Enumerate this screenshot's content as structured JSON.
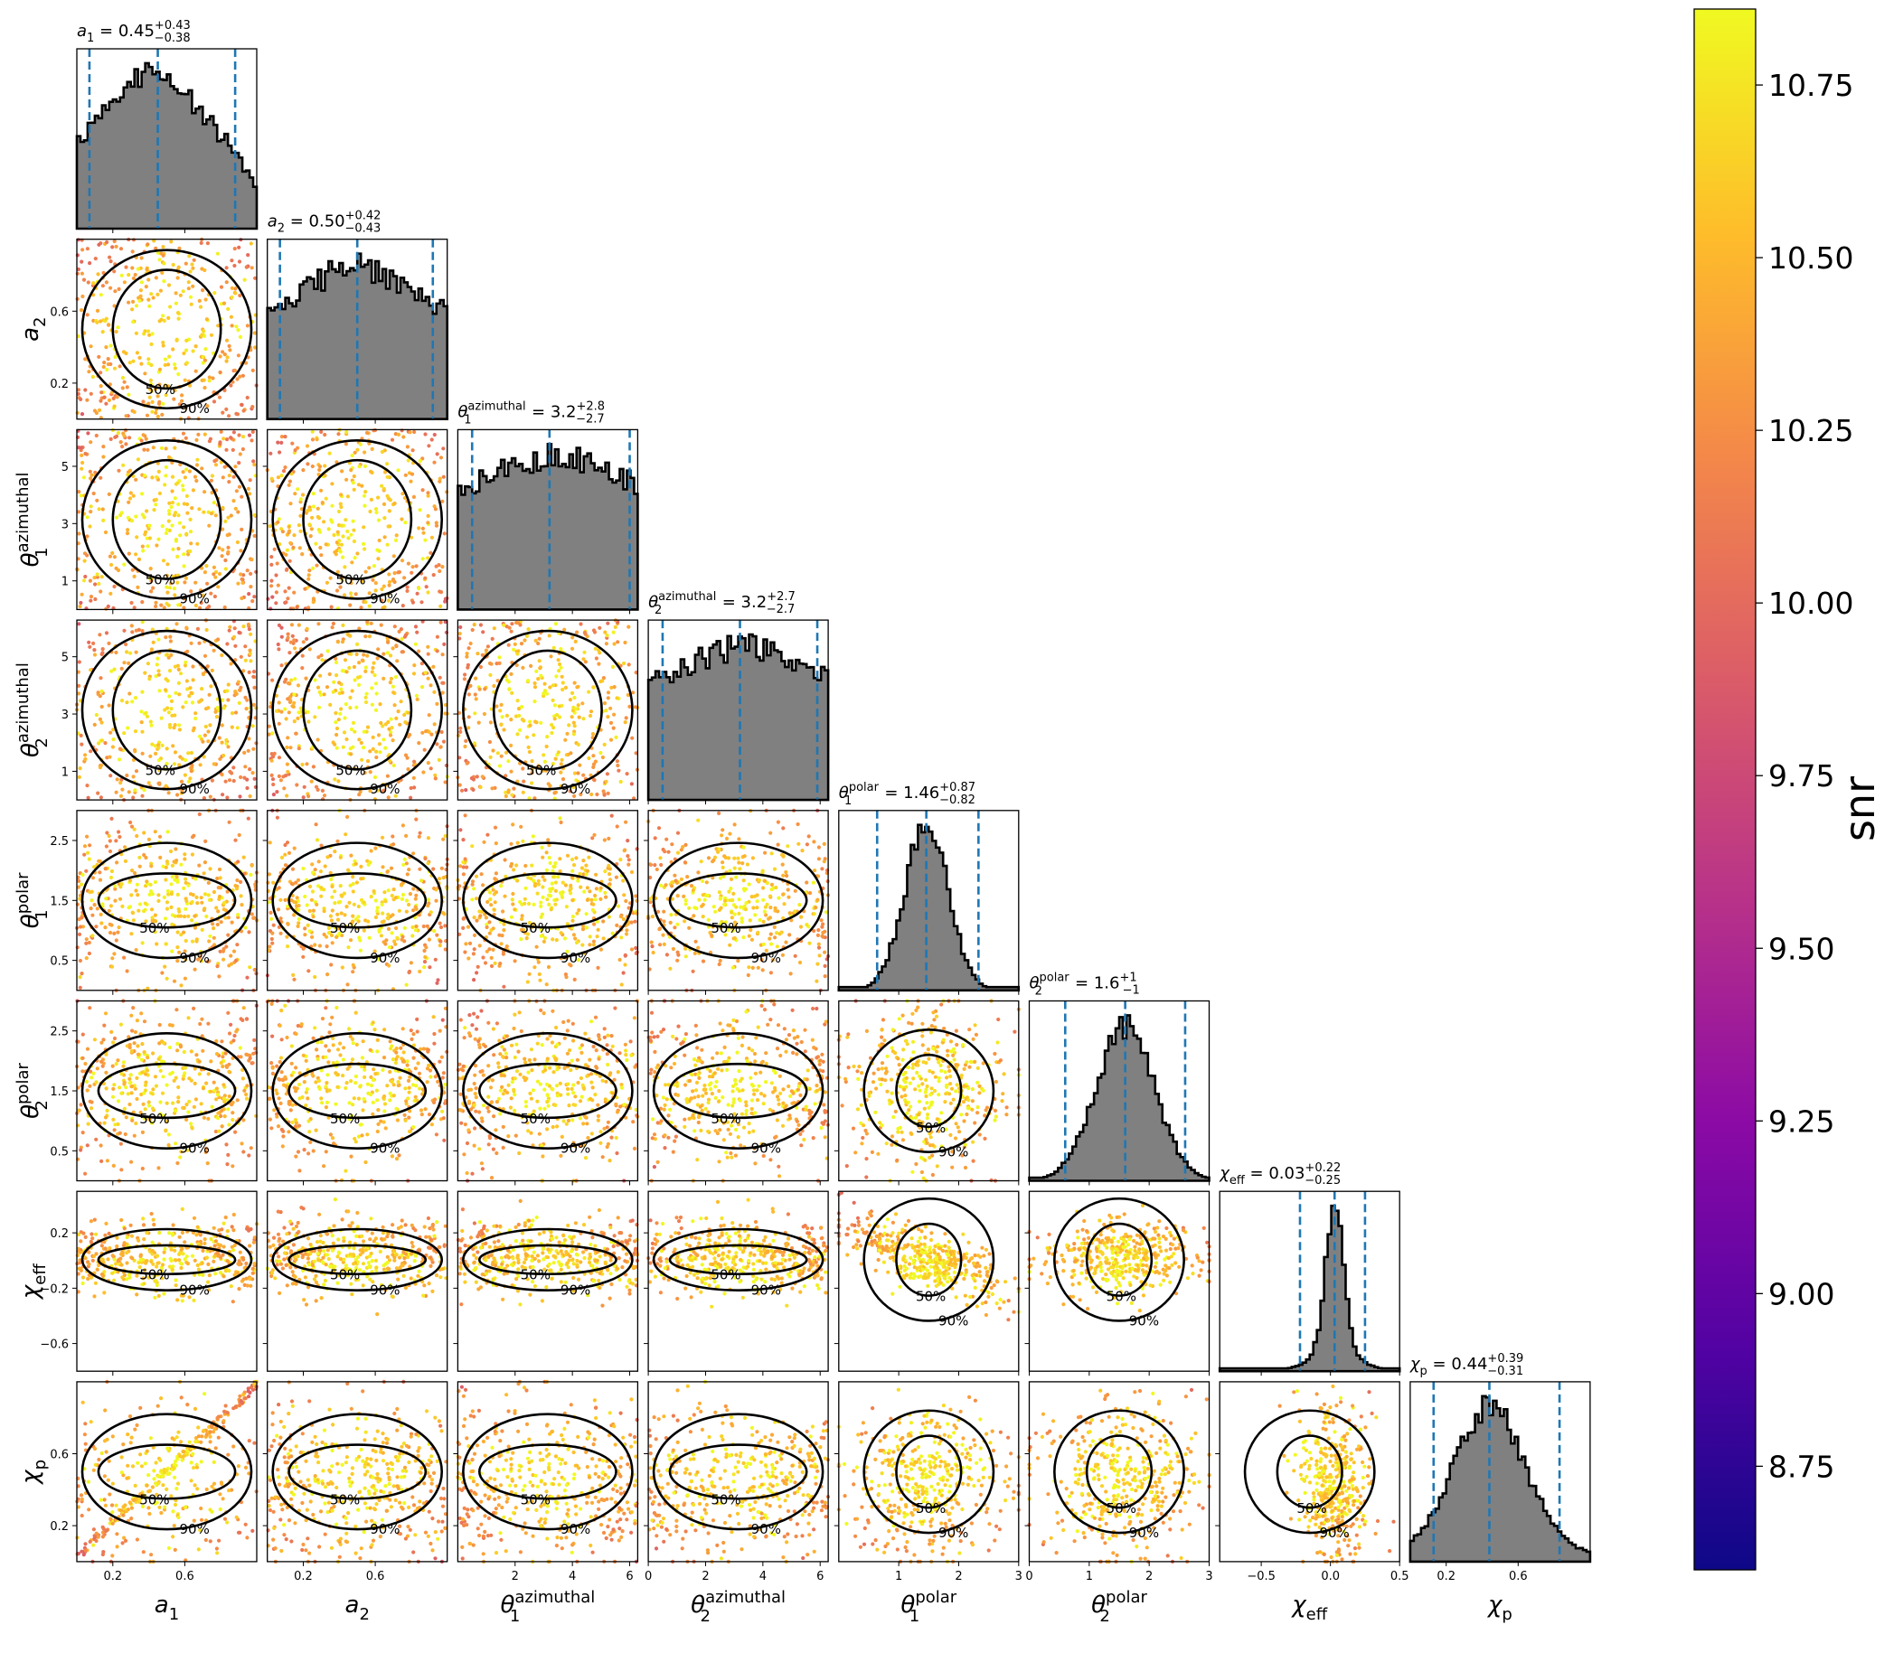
{
  "chart_data": {
    "type": "scatter",
    "subtype": "corner-plot",
    "parameters": [
      {
        "symbol": "a",
        "sub": "1",
        "sup": "",
        "range": [
          0,
          1
        ],
        "ticks": [
          0.2,
          0.6
        ],
        "tick_labels": [
          "0.2",
          "0.6"
        ],
        "median": 0.45,
        "plus": "+0.43",
        "minus": "−0.38",
        "median_label": "0.45"
      },
      {
        "symbol": "a",
        "sub": "2",
        "sup": "",
        "range": [
          0,
          1
        ],
        "ticks": [
          0.2,
          0.6
        ],
        "tick_labels": [
          "0.2",
          "0.6"
        ],
        "median": 0.5,
        "plus": "+0.42",
        "minus": "−0.43",
        "median_label": "0.50"
      },
      {
        "symbol": "θ",
        "sub": "1",
        "sup": "azimuthal",
        "range": [
          0,
          6.28
        ],
        "ticks": [
          2,
          4,
          6
        ],
        "tick_labels": [
          "2",
          "4",
          "6"
        ],
        "ytick_values": [
          1,
          3,
          5
        ],
        "ytick_labels": [
          "1",
          "3",
          "5"
        ],
        "median": 3.2,
        "plus": "+2.8",
        "minus": "−2.7",
        "median_label": "3.2"
      },
      {
        "symbol": "θ",
        "sub": "2",
        "sup": "azimuthal",
        "range": [
          0,
          6.28
        ],
        "ticks": [
          0,
          2,
          4,
          6
        ],
        "tick_labels": [
          "0",
          "2",
          "4",
          "6"
        ],
        "ytick_values": [
          1,
          3,
          5
        ],
        "ytick_labels": [
          "1",
          "3",
          "5"
        ],
        "median": 3.2,
        "plus": "+2.7",
        "minus": "−2.7",
        "median_label": "3.2"
      },
      {
        "symbol": "θ",
        "sub": "1",
        "sup": "polar",
        "range": [
          0,
          3.0
        ],
        "ticks": [
          1,
          2,
          3
        ],
        "tick_labels": [
          "1",
          "2",
          "3"
        ],
        "ytick_values": [
          0.5,
          1.5,
          2.5
        ],
        "ytick_labels": [
          "0.5",
          "1.5",
          "2.5"
        ],
        "median": 1.46,
        "plus": "+0.87",
        "minus": "−0.82",
        "median_label": "1.46"
      },
      {
        "symbol": "θ",
        "sub": "2",
        "sup": "polar",
        "range": [
          0,
          3.0
        ],
        "ticks": [
          0,
          1,
          2,
          3
        ],
        "tick_labels": [
          "0",
          "1",
          "2",
          "3"
        ],
        "ytick_values": [
          0.5,
          1.5,
          2.5
        ],
        "ytick_labels": [
          "0.5",
          "1.5",
          "2.5"
        ],
        "median": 1.6,
        "plus": "+1",
        "minus": "−1",
        "median_label": "1.6"
      },
      {
        "symbol": "χ",
        "sub": "eff",
        "sup": "",
        "range": [
          -0.8,
          0.5
        ],
        "ticks": [
          -0.5,
          0.0,
          0.5
        ],
        "tick_labels": [
          "−0.5",
          "0.0",
          "0.5"
        ],
        "ytick_values": [
          -0.6,
          -0.2,
          0.2
        ],
        "ytick_labels": [
          "−0.6",
          "−0.2",
          "0.2"
        ],
        "median": 0.03,
        "plus": "+0.22",
        "minus": "−0.25",
        "median_label": "0.03"
      },
      {
        "symbol": "χ",
        "sub": "p",
        "sup": "",
        "range": [
          0,
          1
        ],
        "ticks": [
          0.2,
          0.6
        ],
        "tick_labels": [
          "0.2",
          "0.6"
        ],
        "ytick_values": [
          0.2,
          0.6
        ],
        "ytick_labels": [
          "0.2",
          "0.6"
        ],
        "median": 0.44,
        "plus": "+0.39",
        "minus": "−0.31",
        "median_label": "0.44"
      }
    ],
    "contour_levels": [
      "50%",
      "90%"
    ],
    "colorbar": {
      "label": "snr",
      "range": [
        8.6,
        10.86
      ],
      "ticks": [
        8.75,
        9.0,
        9.25,
        9.5,
        9.75,
        10.0,
        10.25,
        10.5,
        10.75
      ],
      "tick_labels": [
        "8.75",
        "9.00",
        "9.25",
        "9.50",
        "9.75",
        "10.00",
        "10.25",
        "10.50",
        "10.75"
      ],
      "colormap": "plasma",
      "stops": [
        "#0d0887",
        "#5302a3",
        "#8b0aa5",
        "#b83289",
        "#db5c68",
        "#f48849",
        "#febd2a",
        "#f0f921"
      ]
    },
    "histogram_fill": "#808080",
    "quantile_line_color": "#1f77b4",
    "grid": false
  }
}
